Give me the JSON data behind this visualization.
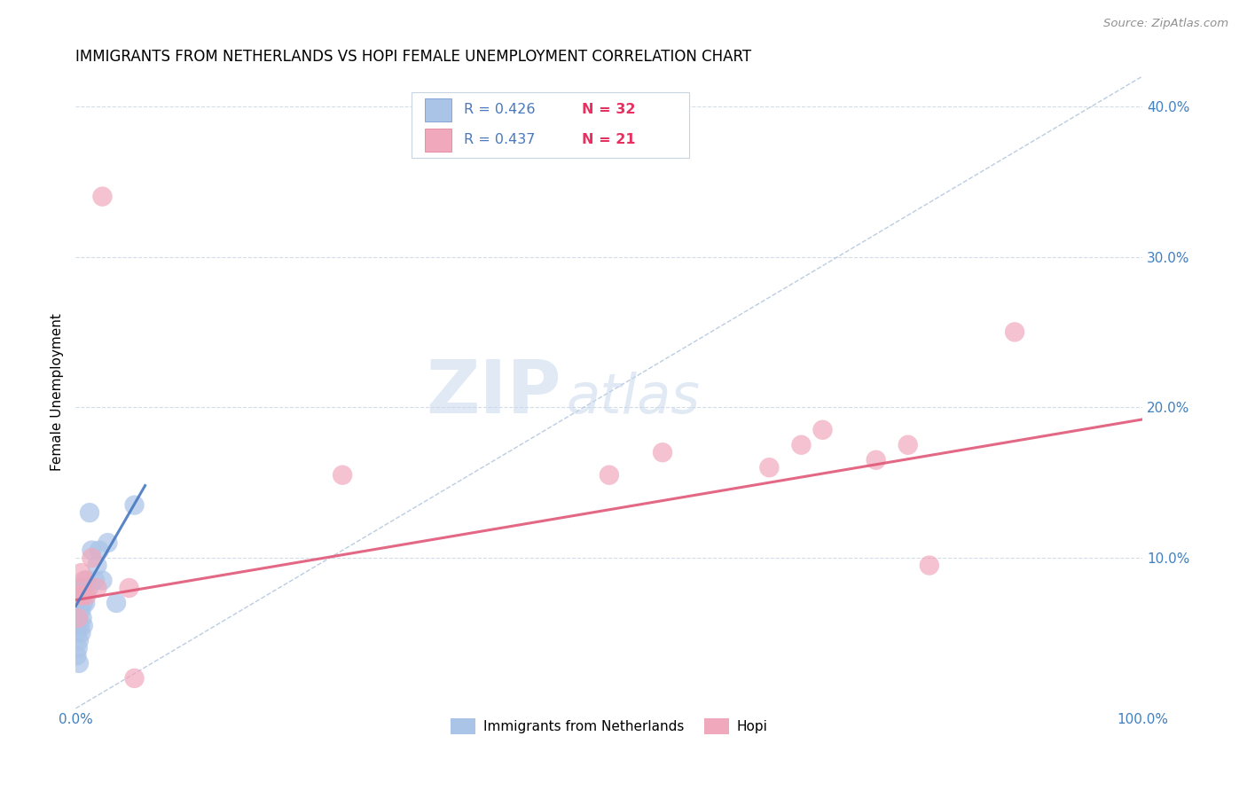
{
  "title": "IMMIGRANTS FROM NETHERLANDS VS HOPI FEMALE UNEMPLOYMENT CORRELATION CHART",
  "source": "Source: ZipAtlas.com",
  "xlabel_blue": "Immigrants from Netherlands",
  "xlabel_pink": "Hopi",
  "ylabel": "Female Unemployment",
  "xlim": [
    0,
    1.0
  ],
  "ylim": [
    0,
    0.42
  ],
  "xticks": [
    0.0,
    0.1,
    0.2,
    0.3,
    0.4,
    0.5,
    0.6,
    0.7,
    0.8,
    0.9,
    1.0
  ],
  "yticks": [
    0.0,
    0.1,
    0.2,
    0.3,
    0.4
  ],
  "blue_R": 0.426,
  "blue_N": 32,
  "pink_R": 0.437,
  "pink_N": 21,
  "blue_color": "#aac4e8",
  "pink_color": "#f0a8bc",
  "blue_line_color": "#4878c0",
  "pink_line_color": "#e05878",
  "dashed_line_color": "#b0c4dc",
  "blue_scatter_x": [
    0.001,
    0.001,
    0.002,
    0.002,
    0.002,
    0.003,
    0.003,
    0.003,
    0.003,
    0.004,
    0.004,
    0.004,
    0.005,
    0.005,
    0.005,
    0.006,
    0.006,
    0.007,
    0.007,
    0.008,
    0.009,
    0.01,
    0.012,
    0.013,
    0.015,
    0.018,
    0.02,
    0.022,
    0.025,
    0.03,
    0.038,
    0.055
  ],
  "blue_scatter_y": [
    0.035,
    0.05,
    0.04,
    0.06,
    0.07,
    0.03,
    0.045,
    0.065,
    0.075,
    0.055,
    0.07,
    0.08,
    0.05,
    0.065,
    0.08,
    0.06,
    0.075,
    0.055,
    0.07,
    0.08,
    0.07,
    0.085,
    0.08,
    0.13,
    0.105,
    0.085,
    0.095,
    0.105,
    0.085,
    0.11,
    0.07,
    0.135
  ],
  "pink_scatter_x": [
    0.002,
    0.003,
    0.005,
    0.006,
    0.008,
    0.01,
    0.015,
    0.02,
    0.025,
    0.05,
    0.055,
    0.25,
    0.5,
    0.55,
    0.65,
    0.68,
    0.7,
    0.75,
    0.78,
    0.8,
    0.88
  ],
  "pink_scatter_y": [
    0.06,
    0.075,
    0.09,
    0.075,
    0.085,
    0.075,
    0.1,
    0.08,
    0.34,
    0.08,
    0.02,
    0.155,
    0.155,
    0.17,
    0.16,
    0.175,
    0.185,
    0.165,
    0.175,
    0.095,
    0.25
  ],
  "blue_trend_x": [
    0.0,
    0.065
  ],
  "blue_trend_y": [
    0.068,
    0.148
  ],
  "pink_trend_x": [
    0.0,
    1.0
  ],
  "pink_trend_y": [
    0.072,
    0.192
  ],
  "dashed_trend_x": [
    0.0,
    1.0
  ],
  "dashed_trend_y": [
    0.0,
    0.42
  ],
  "watermark_zip": "ZIP",
  "watermark_atlas": "atlas",
  "background_color": "#ffffff",
  "grid_color": "#d4dce8",
  "title_fontsize": 12,
  "label_fontsize": 11,
  "tick_fontsize": 11
}
